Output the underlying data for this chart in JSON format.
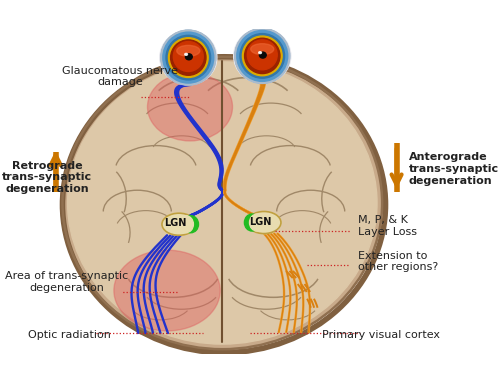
{
  "bg_color": "#ffffff",
  "brain_color": "#c8aa8a",
  "brain_shadow": "#b09070",
  "brain_highlight": "#ddc8a8",
  "brain_outline": "#907050",
  "sulci_color": "#a08868",
  "red_zone_color": "#dd6060",
  "red_zone_alpha": 0.45,
  "blue_color": "#2233cc",
  "orange_color": "#d98010",
  "orange_light": "#f0a030",
  "green_lgn": "#22bb22",
  "lgn_body": "#e8ddb0",
  "lgn_outline": "#c0a040",
  "eye_white": "#e8e8ee",
  "eye_blue_outer": "#5599cc",
  "eye_blue_inner": "#3377aa",
  "eye_yellow": "#ddaa00",
  "eye_iris": "#cc3300",
  "eye_iris_dark": "#992200",
  "eye_pupil": "#111111",
  "text_color": "#222222",
  "red_dotted": "#cc2222",
  "arrow_color": "#cc7700",
  "labels": {
    "glaucomatous": "Glaucomatous nerve\ndamage",
    "retrograde": "Retrograde\ntrans-synaptic\ndegeneration",
    "anterograde": "Anterograde\ntrans-synaptic\ndegeneration",
    "lgn": "LGN",
    "mpk": "M, P, & K\nLayer Loss",
    "extension": "Extension to\nother regions?",
    "area_trans": "Area of trans-synaptic\ndegeneration",
    "optic_rad": "Optic radiation",
    "primary_visual": "Primary visual cortex"
  },
  "figsize": [
    5.0,
    3.83
  ],
  "dpi": 100
}
